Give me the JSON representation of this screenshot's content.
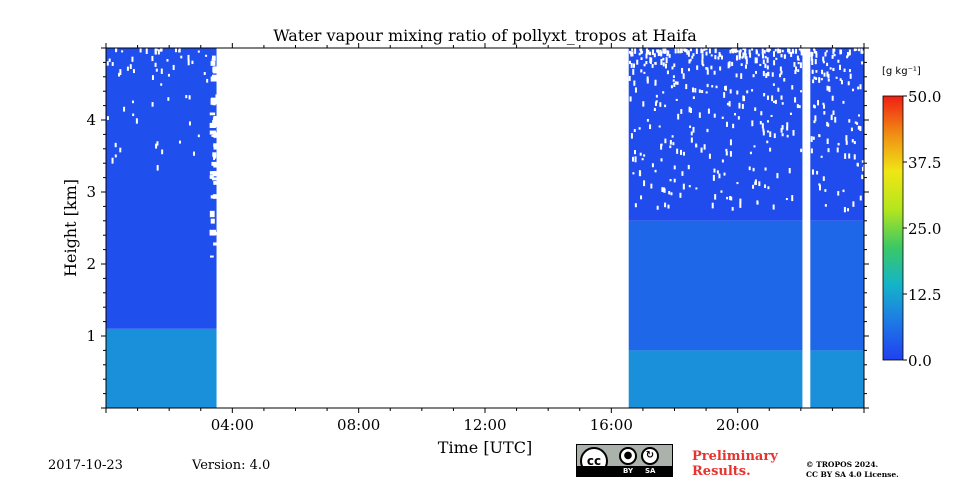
{
  "chart_data": {
    "type": "heatmap",
    "title": "Water vapour mixing ratio of pollyxt_tropos at Haifa",
    "xlabel": "Time [UTC]",
    "ylabel": "Height [km]",
    "xlim": [
      0,
      24
    ],
    "ylim": [
      0,
      5
    ],
    "x_ticks": [
      {
        "value": 4,
        "label": "04:00"
      },
      {
        "value": 8,
        "label": "08:00"
      },
      {
        "value": 12,
        "label": "12:00"
      },
      {
        "value": 16,
        "label": "16:00"
      },
      {
        "value": 20,
        "label": "20:00"
      }
    ],
    "y_ticks": [
      {
        "value": 1,
        "label": "1"
      },
      {
        "value": 2,
        "label": "2"
      },
      {
        "value": 3,
        "label": "3"
      },
      {
        "value": 4,
        "label": "4"
      }
    ],
    "colorbar": {
      "unit": "[g kg⁻¹]",
      "range": [
        0,
        50
      ],
      "ticks": [
        "0.0",
        "12.5",
        "25.0",
        "37.5",
        "50.0"
      ],
      "tick_values": [
        0,
        12.5,
        25,
        37.5,
        50
      ],
      "stops": [
        "#2040f0",
        "#1e78e6",
        "#14b4c8",
        "#3cc864",
        "#b4e61e",
        "#f0e614",
        "#f08c14",
        "#f01e14"
      ]
    },
    "data_segments": [
      {
        "start": 0.0,
        "end": 3.5,
        "layers": [
          {
            "bottom": 0.0,
            "top": 1.1,
            "value": 10
          },
          {
            "bottom": 1.1,
            "top": 5.0,
            "value": 2
          }
        ]
      },
      {
        "start": 16.55,
        "end": 22.05,
        "layers": [
          {
            "bottom": 0.0,
            "top": 0.8,
            "value": 10
          },
          {
            "bottom": 0.8,
            "top": 2.6,
            "value": 5
          },
          {
            "bottom": 2.6,
            "top": 5.0,
            "value": 1.5
          }
        ]
      },
      {
        "start": 22.3,
        "end": 24.0,
        "layers": [
          {
            "bottom": 0.0,
            "top": 0.8,
            "value": 10
          },
          {
            "bottom": 0.8,
            "top": 2.6,
            "value": 5
          },
          {
            "bottom": 2.6,
            "top": 5.0,
            "value": 1.5
          }
        ]
      }
    ],
    "gaps": [
      {
        "start": 3.5,
        "end": 16.55
      },
      {
        "start": 22.05,
        "end": 22.3
      }
    ]
  },
  "footer": {
    "date": "2017-10-23",
    "version": "Version: 4.0",
    "license_by": "BY",
    "license_sa": "SA",
    "license_cc": "cc",
    "preliminary_line1": "Preliminary",
    "preliminary_line2": "Results.",
    "copyright_line1": "© TROPOS 2024.",
    "copyright_line2": "CC BY SA 4.0 License."
  }
}
